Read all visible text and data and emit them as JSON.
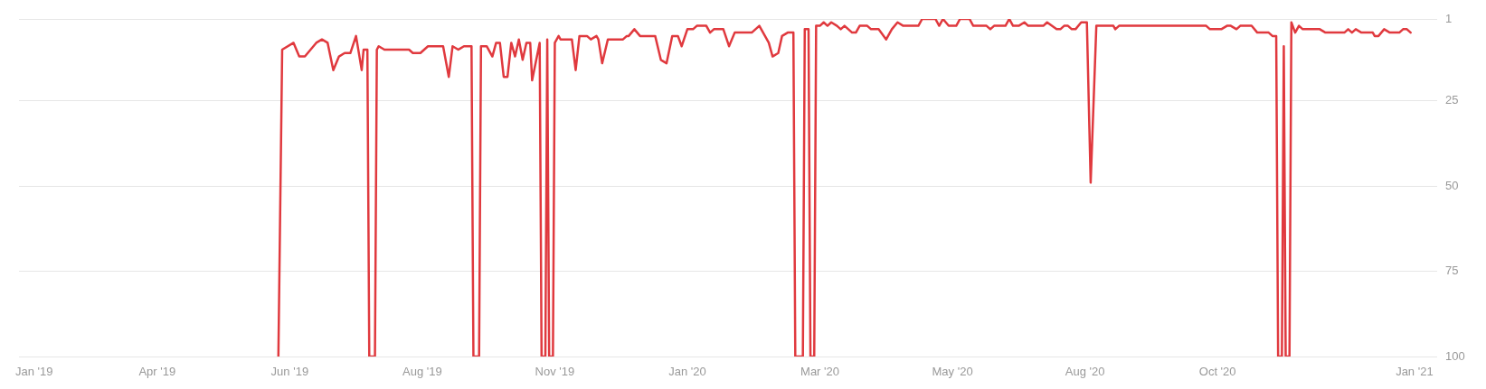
{
  "chart_data": {
    "type": "line",
    "color": "#e0393e",
    "line_style": "solid",
    "grid": "y",
    "xlim": [
      "2019-01-23",
      "2021-02-10"
    ],
    "xticks": [
      {
        "value": "2019-01-31",
        "label": "Jan '19"
      },
      {
        "value": "2019-04-06",
        "label": "Apr '19"
      },
      {
        "value": "2019-06-15",
        "label": "Jun '19"
      },
      {
        "value": "2019-08-24",
        "label": "Aug '19"
      },
      {
        "value": "2019-11-02",
        "label": "Nov '19"
      },
      {
        "value": "2020-01-11",
        "label": "Jan '20"
      },
      {
        "value": "2020-03-21",
        "label": "Mar '20"
      },
      {
        "value": "2020-05-30",
        "label": "May '20"
      },
      {
        "value": "2020-08-08",
        "label": "Aug '20"
      },
      {
        "value": "2020-10-17",
        "label": "Oct '20"
      },
      {
        "value": "2021-01-29",
        "label": "Jan '21"
      }
    ],
    "ylim": [
      100,
      1
    ],
    "yticks": [
      1,
      25,
      50,
      75,
      100
    ],
    "x": [
      "2019-06-09",
      "2019-06-11",
      "2019-06-17",
      "2019-06-20",
      "2019-06-23",
      "2019-06-29",
      "2019-07-02",
      "2019-07-05",
      "2019-07-08",
      "2019-07-11",
      "2019-07-14",
      "2019-07-17",
      "2019-07-20",
      "2019-07-23",
      "2019-07-24",
      "2019-07-26",
      "2019-07-27",
      "2019-07-30",
      "2019-07-31",
      "2019-08-01",
      "2019-08-04",
      "2019-08-17",
      "2019-08-19",
      "2019-08-23",
      "2019-08-27",
      "2019-09-04",
      "2019-09-07",
      "2019-09-09",
      "2019-09-12",
      "2019-09-15",
      "2019-09-19",
      "2019-09-20",
      "2019-09-23",
      "2019-09-24",
      "2019-09-27",
      "2019-09-30",
      "2019-10-02",
      "2019-10-04",
      "2019-10-06",
      "2019-10-08",
      "2019-10-10",
      "2019-10-12",
      "2019-10-14",
      "2019-10-16",
      "2019-10-18",
      "2019-10-20",
      "2019-10-21",
      "2019-10-25",
      "2019-10-26",
      "2019-10-28",
      "2019-10-29",
      "2019-10-30",
      "2019-11-01",
      "2019-11-02",
      "2019-11-04",
      "2019-11-05",
      "2019-11-11",
      "2019-11-13",
      "2019-11-15",
      "2019-11-19",
      "2019-11-21",
      "2019-11-24",
      "2019-11-25",
      "2019-11-27",
      "2019-11-30",
      "2019-12-08",
      "2019-12-10",
      "2019-12-11",
      "2019-12-14",
      "2019-12-17",
      "2019-12-25",
      "2019-12-28",
      "2019-12-31",
      "2020-01-03",
      "2020-01-06",
      "2020-01-08",
      "2020-01-11",
      "2020-01-14",
      "2020-01-16",
      "2020-01-21",
      "2020-01-23",
      "2020-01-25",
      "2020-01-30",
      "2020-02-02",
      "2020-02-05",
      "2020-02-14",
      "2020-02-18",
      "2020-02-23",
      "2020-02-25",
      "2020-02-28",
      "2020-03-01",
      "2020-03-04",
      "2020-03-07",
      "2020-03-08",
      "2020-03-12",
      "2020-03-13",
      "2020-03-15",
      "2020-03-16",
      "2020-03-18",
      "2020-03-19",
      "2020-03-21",
      "2020-03-23",
      "2020-03-25",
      "2020-03-27",
      "2020-03-30",
      "2020-04-01",
      "2020-04-03",
      "2020-04-07",
      "2020-04-09",
      "2020-04-11",
      "2020-04-15",
      "2020-04-17",
      "2020-04-21",
      "2020-04-25",
      "2020-04-28",
      "2020-05-01",
      "2020-05-04",
      "2020-05-12",
      "2020-05-14",
      "2020-05-21",
      "2020-05-23",
      "2020-05-25",
      "2020-05-28",
      "2020-06-01",
      "2020-06-03",
      "2020-06-08",
      "2020-06-10",
      "2020-06-17",
      "2020-06-19",
      "2020-06-21",
      "2020-06-27",
      "2020-06-29",
      "2020-07-01",
      "2020-07-04",
      "2020-07-07",
      "2020-07-09",
      "2020-07-17",
      "2020-07-19",
      "2020-07-24",
      "2020-07-26",
      "2020-07-28",
      "2020-07-30",
      "2020-08-01",
      "2020-08-03",
      "2020-08-06",
      "2020-08-09",
      "2020-08-11",
      "2020-08-14",
      "2020-08-23",
      "2020-08-24",
      "2020-08-26",
      "2020-10-11",
      "2020-10-13",
      "2020-10-19",
      "2020-10-22",
      "2020-10-24",
      "2020-10-27",
      "2020-10-29",
      "2020-11-04",
      "2020-11-07",
      "2020-11-13",
      "2020-11-15",
      "2020-11-17",
      "2020-11-18",
      "2020-11-20",
      "2020-11-21",
      "2020-11-22",
      "2020-11-24",
      "2020-11-25",
      "2020-11-27",
      "2020-11-29",
      "2020-12-01",
      "2020-12-10",
      "2020-12-13",
      "2020-12-23",
      "2020-12-25",
      "2020-12-27",
      "2020-12-29",
      "2021-01-01",
      "2021-01-07",
      "2021-01-08",
      "2021-01-10",
      "2021-01-13",
      "2021-01-16",
      "2021-01-21",
      "2021-01-23",
      "2021-01-25",
      "2021-01-27"
    ],
    "values": [
      100,
      10,
      8,
      12,
      12,
      8,
      7,
      8,
      16,
      12,
      11,
      11,
      6,
      16,
      10,
      10,
      100,
      100,
      10,
      9,
      10,
      10,
      11,
      11,
      9,
      9,
      18,
      9,
      10,
      9,
      9,
      100,
      100,
      9,
      9,
      12,
      8,
      8,
      18,
      18,
      8,
      12,
      7,
      13,
      8,
      8,
      19,
      8,
      100,
      100,
      7,
      100,
      100,
      8,
      6,
      7,
      7,
      16,
      6,
      6,
      7,
      6,
      7,
      14,
      7,
      7,
      6,
      6,
      4,
      6,
      6,
      13,
      14,
      6,
      6,
      9,
      4,
      4,
      3,
      3,
      5,
      4,
      4,
      9,
      5,
      5,
      3,
      8,
      12,
      11,
      6,
      5,
      5,
      100,
      100,
      4,
      4,
      100,
      100,
      3,
      3,
      2,
      3,
      2,
      3,
      4,
      3,
      5,
      5,
      3,
      3,
      4,
      4,
      7,
      4,
      2,
      3,
      3,
      1,
      1,
      3,
      1,
      3,
      3,
      1,
      1,
      3,
      3,
      4,
      3,
      3,
      1,
      3,
      3,
      2,
      3,
      3,
      2,
      4,
      4,
      3,
      3,
      4,
      4,
      2,
      2,
      49,
      3,
      3,
      4,
      3,
      3,
      4,
      4,
      3,
      3,
      4,
      3,
      3,
      5,
      5,
      6,
      6,
      100,
      100,
      9,
      100,
      100,
      2,
      5,
      3,
      4,
      4,
      5,
      5,
      4,
      5,
      4,
      5,
      5,
      6,
      6,
      4,
      5,
      5,
      4,
      4,
      5
    ]
  }
}
